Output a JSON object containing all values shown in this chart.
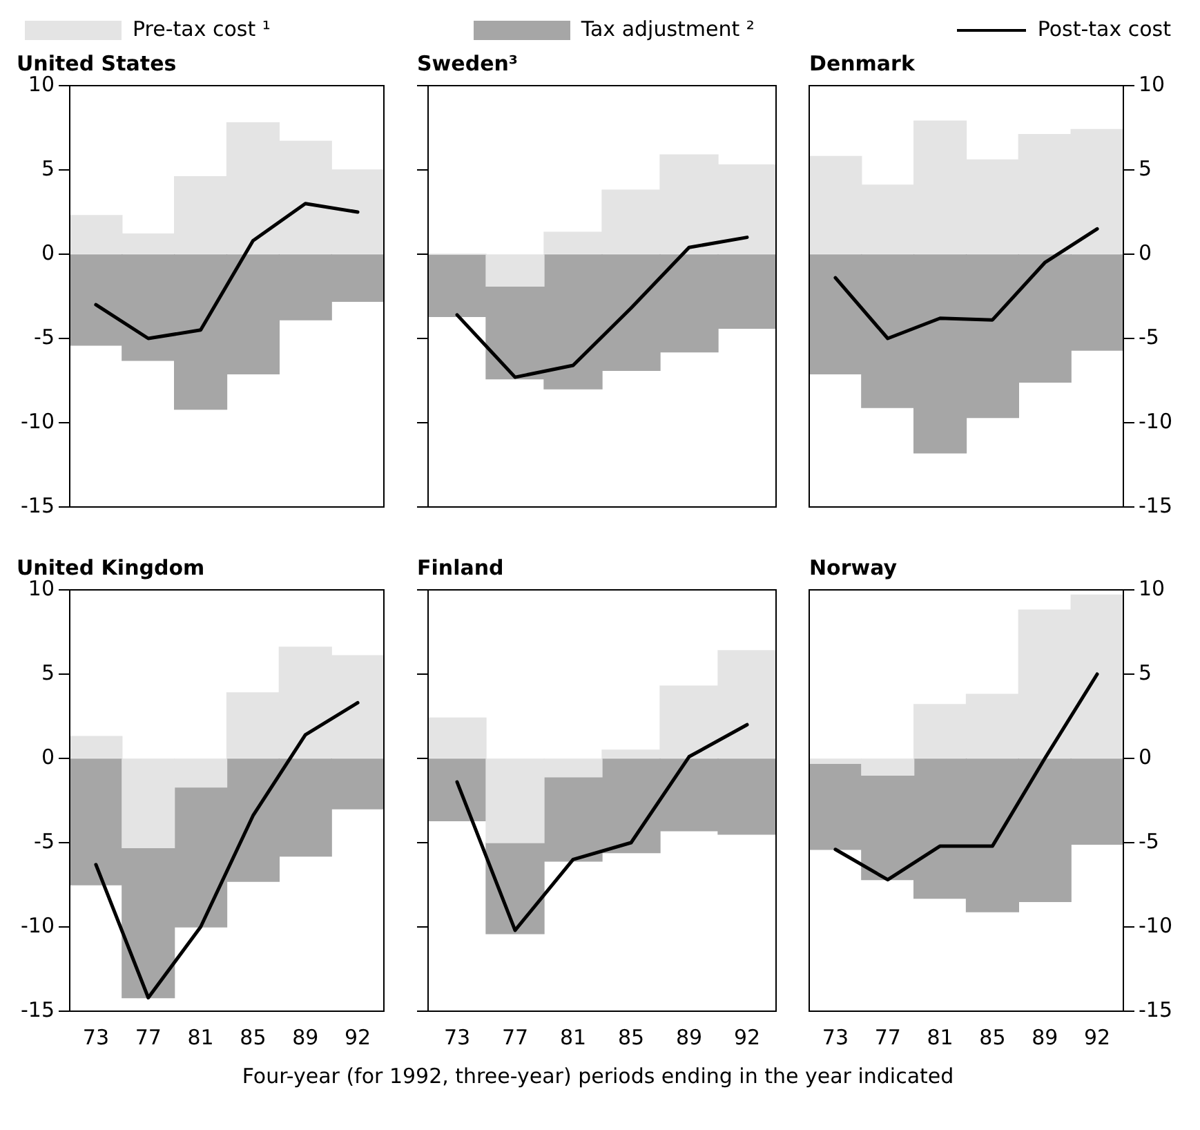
{
  "chart_data": [
    {
      "type": "bar",
      "title": "United States",
      "categories": [
        "73",
        "77",
        "81",
        "85",
        "89",
        "92"
      ],
      "stacked": true,
      "ylim": [
        -15,
        10
      ],
      "yticks": [
        -15,
        -10,
        -5,
        0,
        5,
        10
      ],
      "tick_labels": "y",
      "legend": "top",
      "series": [
        {
          "name": "Pre-tax cost ¹",
          "color": "#e4e4e4",
          "values": [
            2.3,
            1.2,
            4.6,
            7.8,
            6.7,
            5.0
          ]
        },
        {
          "name": "Tax adjustment ²",
          "color": "#a6a6a6",
          "values": [
            -5.4,
            -6.3,
            -9.2,
            -7.1,
            -3.9,
            -2.8
          ]
        },
        {
          "name": "Post-tax cost",
          "type": "line",
          "color": "#000000",
          "values": [
            -3.0,
            -5.0,
            -4.5,
            0.8,
            3.0,
            2.5
          ]
        }
      ]
    },
    {
      "type": "bar",
      "title": "Sweden³",
      "categories": [
        "73",
        "77",
        "81",
        "85",
        "89",
        "92"
      ],
      "stacked": true,
      "ylim": [
        -15,
        10
      ],
      "yticks": [
        -15,
        -10,
        -5,
        0,
        5,
        10
      ],
      "tick_labels": false,
      "series": [
        {
          "color": "#e4e4e4",
          "values": [
            0,
            -1.9,
            1.3,
            3.8,
            5.9,
            5.3
          ]
        },
        {
          "color": "#a6a6a6",
          "values": [
            -3.7,
            -5.5,
            -8.0,
            -6.9,
            -5.8,
            -4.4
          ]
        },
        {
          "type": "line",
          "color": "#000000",
          "values": [
            -3.6,
            -7.3,
            -6.6,
            -3.2,
            0.4,
            1.0
          ]
        }
      ]
    },
    {
      "type": "bar",
      "title": "Denmark",
      "categories": [
        "73",
        "77",
        "81",
        "85",
        "89",
        "92"
      ],
      "stacked": true,
      "ylim": [
        -15,
        10
      ],
      "yticks": [
        -15,
        -10,
        -5,
        0,
        5,
        10
      ],
      "tick_labels": "y",
      "series": [
        {
          "color": "#e4e4e4",
          "values": [
            5.8,
            4.1,
            7.9,
            5.6,
            7.1,
            7.4
          ]
        },
        {
          "color": "#a6a6a6",
          "values": [
            -7.1,
            -9.1,
            -11.8,
            -9.7,
            -7.6,
            -5.7
          ]
        },
        {
          "type": "line",
          "color": "#000000",
          "values": [
            -1.4,
            -5.0,
            -3.8,
            -3.9,
            -0.5,
            1.5
          ]
        }
      ]
    },
    {
      "type": "bar",
      "title": "United Kingdom",
      "categories": [
        "73",
        "77",
        "81",
        "85",
        "89",
        "92"
      ],
      "stacked": true,
      "ylim": [
        -15,
        10
      ],
      "yticks": [
        -15,
        -10,
        -5,
        0,
        5,
        10
      ],
      "series": [
        {
          "color": "#e4e4e4",
          "values": [
            1.3,
            -5.3,
            -1.7,
            3.9,
            6.6,
            6.1
          ]
        },
        {
          "color": "#a6a6a6",
          "values": [
            -7.5,
            -8.9,
            -8.3,
            -7.3,
            -5.8,
            -3.0
          ]
        },
        {
          "type": "line",
          "color": "#000000",
          "values": [
            -6.3,
            -14.2,
            -10.0,
            -3.4,
            1.4,
            3.3
          ]
        }
      ]
    },
    {
      "type": "bar",
      "title": "Finland",
      "xlabel": "Four-year (for 1992, three-year) periods ending in the year indicated",
      "categories": [
        "73",
        "77",
        "81",
        "85",
        "89",
        "92"
      ],
      "stacked": true,
      "ylim": [
        -15,
        10
      ],
      "yticks": [
        -15,
        -10,
        -5,
        0,
        5,
        10
      ],
      "tick_labels": "x",
      "series": [
        {
          "color": "#e4e4e4",
          "values": [
            2.4,
            -5.0,
            -1.1,
            0.5,
            4.3,
            6.4
          ]
        },
        {
          "color": "#a6a6a6",
          "values": [
            -3.7,
            -5.4,
            -5.0,
            -5.6,
            -4.3,
            -4.5
          ]
        },
        {
          "type": "line",
          "color": "#000000",
          "values": [
            -1.4,
            -10.2,
            -6.0,
            -5.0,
            0.1,
            2.0
          ]
        }
      ]
    },
    {
      "type": "bar",
      "title": "Norway",
      "categories": [
        "73",
        "77",
        "81",
        "85",
        "89",
        "92"
      ],
      "stacked": true,
      "ylim": [
        -15,
        10
      ],
      "yticks": [
        -15,
        -10,
        -5,
        0,
        5,
        10
      ],
      "series": [
        {
          "color": "#e4e4e4",
          "values": [
            -0.3,
            -1.0,
            3.2,
            3.8,
            8.8,
            9.7
          ]
        },
        {
          "color": "#a6a6a6",
          "values": [
            -5.1,
            -6.2,
            -8.3,
            -9.1,
            -8.5,
            -5.1
          ]
        },
        {
          "type": "line",
          "color": "#000000",
          "values": [
            -5.4,
            -7.2,
            -5.2,
            -5.2,
            0.0,
            5.0
          ]
        }
      ]
    }
  ]
}
